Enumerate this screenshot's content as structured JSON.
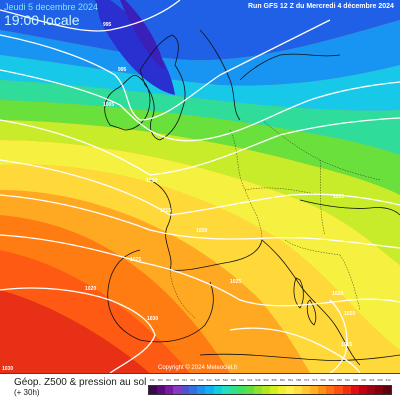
{
  "header": {
    "date": "Jeudi 5 decembre 2024",
    "time": "19:00 locale",
    "run": "Run GFS 12 Z du Mercredi 4 décembre 2024"
  },
  "footer": {
    "title": "Géop. Z500 & pression au sol",
    "subtitle": "(+ 30h)",
    "copyright": "Copyright © 2024 Meteociel.fr"
  },
  "isobar_labels": [
    "995",
    "995",
    "1005",
    "1010",
    "1015",
    "1020",
    "1025",
    "1020",
    "1025",
    "1030",
    "1025",
    "1020",
    "1020",
    "1015",
    "1030"
  ],
  "scale": {
    "labels": [
      "492",
      "500",
      "504",
      "508",
      "512",
      "516",
      "520",
      "524",
      "528",
      "532",
      "536",
      "540",
      "544",
      "548",
      "552",
      "556",
      "560",
      "564",
      "568",
      "572",
      "576",
      "580",
      "584",
      "588",
      "592",
      "596",
      "600",
      "604",
      "608",
      "612"
    ],
    "colors": [
      "#3a0a4a",
      "#5a0a7a",
      "#7a1aa0",
      "#8a3ac0",
      "#5050d0",
      "#3070e0",
      "#2090f0",
      "#10b0f0",
      "#10d0e0",
      "#20e0c0",
      "#30e090",
      "#40e060",
      "#60e040",
      "#90e030",
      "#b0e820",
      "#d0f020",
      "#f0f030",
      "#fff050",
      "#ffe040",
      "#ffc830",
      "#ffb020",
      "#ff9010",
      "#ff7010",
      "#ff5010",
      "#f03010",
      "#e01010",
      "#c00010",
      "#a00010",
      "#800010",
      "#600010"
    ]
  }
}
